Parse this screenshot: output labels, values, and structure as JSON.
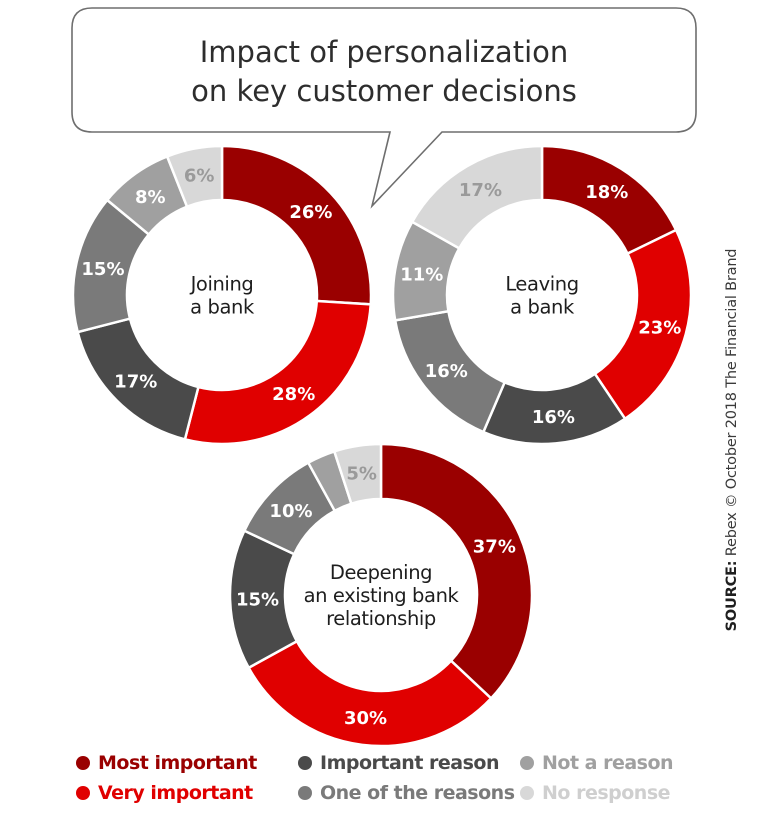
{
  "chart_data": [
    {
      "type": "donut",
      "title": "Joining a bank",
      "labels": [
        "Most important",
        "Very important",
        "Important reason",
        "One of the reasons",
        "Not a reason",
        "No response"
      ],
      "values": [
        26,
        28,
        17,
        15,
        8,
        6
      ]
    },
    {
      "type": "donut",
      "title": "Leaving a bank",
      "labels": [
        "Most important",
        "Very important",
        "Important reason",
        "One of the reasons",
        "Not a reason",
        "No response"
      ],
      "values": [
        18,
        23,
        16,
        16,
        11,
        17
      ]
    },
    {
      "type": "donut",
      "title": "Deepening an existing bank relationship",
      "labels": [
        "Most important",
        "Very important",
        "Important reason",
        "One of the reasons",
        "Not a reason",
        "No response"
      ],
      "values": [
        37,
        30,
        15,
        10,
        3,
        5
      ]
    }
  ],
  "figure": {
    "title_line1": "Impact of personalization",
    "title_line2": "on key customer decisions",
    "donut_centers": [
      [
        "Joining",
        "a bank"
      ],
      [
        "Leaving",
        "a bank"
      ],
      [
        "Deepening",
        "an existing bank",
        "relationship"
      ]
    ],
    "source_label": "SOURCE:",
    "source_text": "Rebex",
    "copyright_text": "© October 2018 The Financial Brand"
  },
  "legend": [
    {
      "label": "Most important",
      "color": "#9a0000"
    },
    {
      "label": "Important reason",
      "color": "#4a4a4a"
    },
    {
      "label": "Not a reason",
      "color": "#a0a0a0"
    },
    {
      "label": "Very important",
      "color": "#e00000"
    },
    {
      "label": "One of the reasons",
      "color": "#7a7a7a"
    },
    {
      "label": "No response",
      "color": "#d8d8d8"
    }
  ],
  "colors": [
    "#9a0000",
    "#e00000",
    "#4a4a4a",
    "#7a7a7a",
    "#a0a0a0",
    "#d8d8d8"
  ],
  "label_colors": [
    "#ffffff",
    "#ffffff",
    "#ffffff",
    "#ffffff",
    "#ffffff",
    "#9a9a9a"
  ]
}
